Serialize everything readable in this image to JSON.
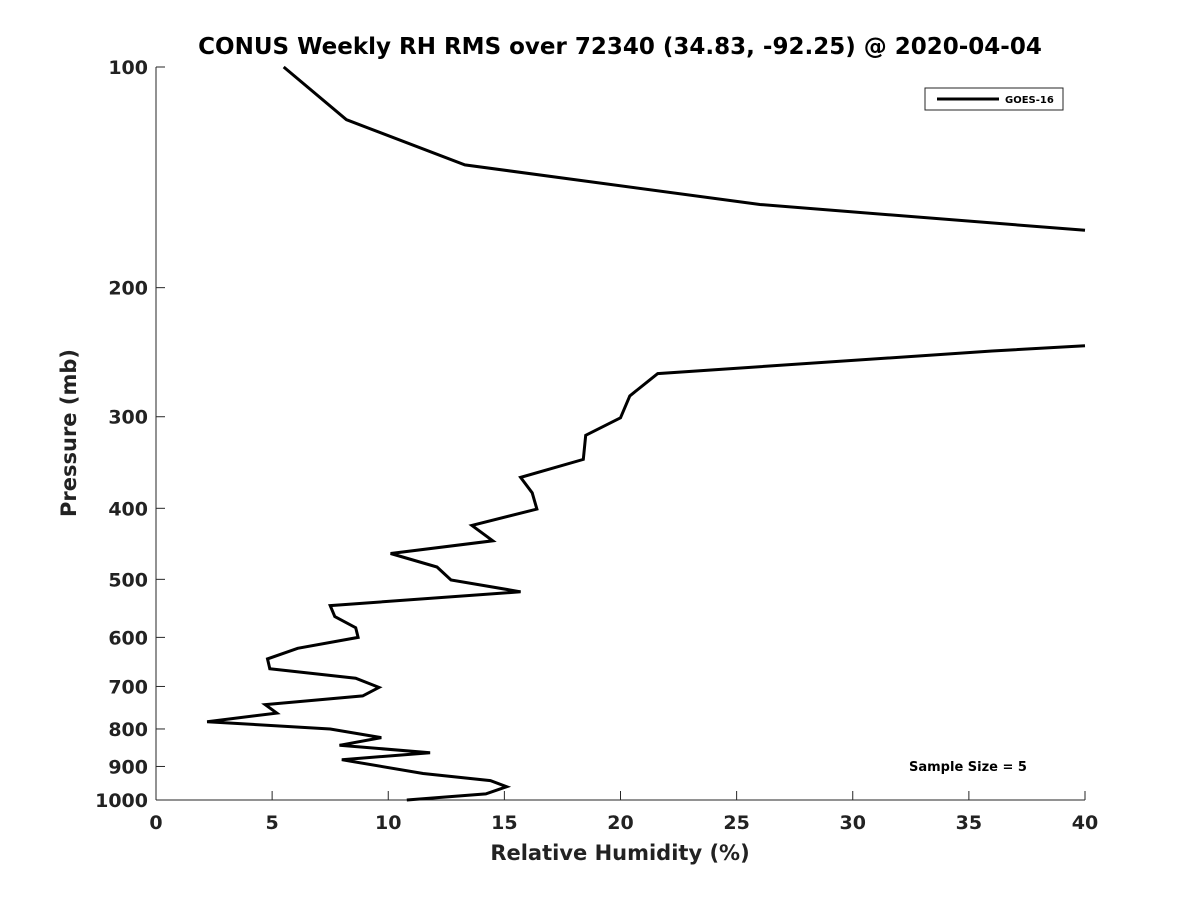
{
  "chart_data": {
    "type": "line",
    "title": "CONUS Weekly RH RMS over 72340 (34.83, -92.25) @ 2020-04-04",
    "xlabel": "Relative Humidity (%)",
    "ylabel": "Pressure (mb)",
    "xlim": [
      0,
      40
    ],
    "ylim": [
      100,
      1000
    ],
    "yscale": "log",
    "y_reversed": true,
    "grid": false,
    "legend_position": "top-right",
    "x_ticks": [
      "0",
      "5",
      "10",
      "15",
      "20",
      "25",
      "30",
      "35",
      "40"
    ],
    "y_ticks": [
      "100",
      "200",
      "300",
      "400",
      "500",
      "600",
      "700",
      "800",
      "900",
      "1000"
    ],
    "annotation": "Sample Size = 5",
    "series": [
      {
        "name": "GOES-16",
        "color": "#000000",
        "segments": [
          [
            {
              "x": 5.5,
              "p": 100
            },
            {
              "x": 8.2,
              "p": 118
            },
            {
              "x": 13.3,
              "p": 136
            },
            {
              "x": 26,
              "p": 154
            },
            {
              "x": 40,
              "p": 167
            }
          ],
          [
            {
              "x": 40,
              "p": 240
            },
            {
              "x": 36,
              "p": 244
            },
            {
              "x": 21.6,
              "p": 262
            },
            {
              "x": 20.4,
              "p": 281
            },
            {
              "x": 20,
              "p": 301
            },
            {
              "x": 18.5,
              "p": 318
            },
            {
              "x": 18.4,
              "p": 343
            },
            {
              "x": 15.7,
              "p": 363
            },
            {
              "x": 16.2,
              "p": 381
            },
            {
              "x": 16.4,
              "p": 401
            },
            {
              "x": 13.6,
              "p": 422
            },
            {
              "x": 14.5,
              "p": 443
            },
            {
              "x": 10.1,
              "p": 461
            },
            {
              "x": 12.1,
              "p": 481
            },
            {
              "x": 12.7,
              "p": 501
            },
            {
              "x": 15.7,
              "p": 520
            },
            {
              "x": 7.5,
              "p": 543
            },
            {
              "x": 7.7,
              "p": 562
            },
            {
              "x": 8.6,
              "p": 582
            },
            {
              "x": 8.7,
              "p": 600
            },
            {
              "x": 6.1,
              "p": 621
            },
            {
              "x": 4.8,
              "p": 642
            },
            {
              "x": 4.9,
              "p": 662
            },
            {
              "x": 8.6,
              "p": 682
            },
            {
              "x": 9.6,
              "p": 702
            },
            {
              "x": 8.9,
              "p": 721
            },
            {
              "x": 4.7,
              "p": 741
            },
            {
              "x": 5.2,
              "p": 761
            },
            {
              "x": 2.2,
              "p": 782
            },
            {
              "x": 7.5,
              "p": 800
            },
            {
              "x": 9.7,
              "p": 822
            },
            {
              "x": 7.9,
              "p": 842
            },
            {
              "x": 11.8,
              "p": 862
            },
            {
              "x": 8.0,
              "p": 881
            },
            {
              "x": 11.5,
              "p": 920
            },
            {
              "x": 14.4,
              "p": 941
            },
            {
              "x": 15.1,
              "p": 959
            },
            {
              "x": 14.2,
              "p": 981
            },
            {
              "x": 10.8,
              "p": 1000
            }
          ]
        ]
      }
    ]
  }
}
